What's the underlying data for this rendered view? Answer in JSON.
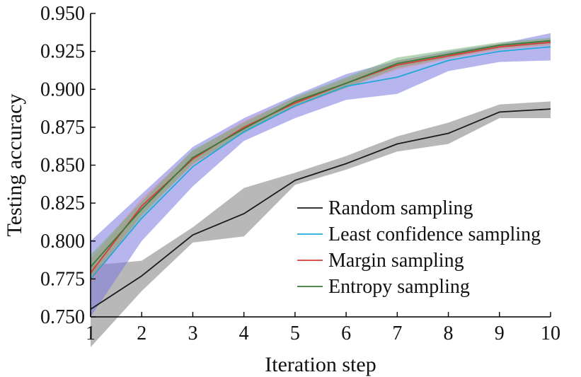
{
  "chart_data": {
    "type": "line",
    "title": "",
    "xlabel": "Iteration step",
    "ylabel": "Testing accuracy",
    "xlim": [
      1,
      10
    ],
    "ylim": [
      0.75,
      0.95
    ],
    "x": [
      1,
      2,
      3,
      4,
      5,
      6,
      7,
      8,
      9,
      10
    ],
    "xticks": [
      "1",
      "2",
      "3",
      "4",
      "5",
      "6",
      "7",
      "8",
      "9",
      "10"
    ],
    "yticks": [
      "0.750",
      "0.775",
      "0.800",
      "0.825",
      "0.850",
      "0.875",
      "0.900",
      "0.925",
      "0.950"
    ],
    "ytick_values": [
      0.75,
      0.775,
      0.8,
      0.825,
      0.85,
      0.875,
      0.9,
      0.925,
      0.95
    ],
    "grid": false,
    "legend_position": "lower-right",
    "series": [
      {
        "name": "Random sampling",
        "color": "#1a1a1a",
        "band_color": "#9a9a9a",
        "band_opacity": 0.7,
        "values": [
          0.755,
          0.777,
          0.804,
          0.818,
          0.84,
          0.851,
          0.864,
          0.871,
          0.885,
          0.887
        ],
        "upper": [
          0.784,
          0.787,
          0.809,
          0.835,
          0.845,
          0.856,
          0.869,
          0.878,
          0.89,
          0.892
        ],
        "lower": [
          0.73,
          0.767,
          0.799,
          0.803,
          0.837,
          0.847,
          0.859,
          0.864,
          0.881,
          0.881
        ]
      },
      {
        "name": "Least confidence sampling",
        "color": "#1fa8d8",
        "band_color": "#7b78e0",
        "band_opacity": 0.55,
        "values": [
          0.775,
          0.815,
          0.849,
          0.872,
          0.889,
          0.902,
          0.908,
          0.919,
          0.925,
          0.928
        ],
        "upper": [
          0.8,
          0.831,
          0.862,
          0.881,
          0.896,
          0.91,
          0.919,
          0.925,
          0.93,
          0.937
        ],
        "lower": [
          0.75,
          0.8,
          0.836,
          0.866,
          0.881,
          0.893,
          0.897,
          0.912,
          0.918,
          0.919
        ]
      },
      {
        "name": "Margin sampling",
        "color": "#d93a3a",
        "band_color": "#d98a8a",
        "band_opacity": 0.5,
        "values": [
          0.779,
          0.823,
          0.854,
          0.875,
          0.891,
          0.904,
          0.916,
          0.922,
          0.928,
          0.931
        ],
        "upper": [
          0.788,
          0.828,
          0.859,
          0.879,
          0.894,
          0.907,
          0.919,
          0.924,
          0.93,
          0.933
        ],
        "lower": [
          0.772,
          0.818,
          0.85,
          0.872,
          0.888,
          0.901,
          0.913,
          0.92,
          0.926,
          0.929
        ]
      },
      {
        "name": "Entropy sampling",
        "color": "#3a7a3a",
        "band_color": "#6fae6f",
        "band_opacity": 0.5,
        "values": [
          0.783,
          0.821,
          0.855,
          0.874,
          0.892,
          0.904,
          0.917,
          0.923,
          0.929,
          0.932
        ],
        "upper": [
          0.791,
          0.826,
          0.86,
          0.878,
          0.895,
          0.908,
          0.921,
          0.926,
          0.931,
          0.934
        ],
        "lower": [
          0.776,
          0.816,
          0.851,
          0.871,
          0.889,
          0.901,
          0.914,
          0.921,
          0.927,
          0.93
        ]
      }
    ]
  }
}
